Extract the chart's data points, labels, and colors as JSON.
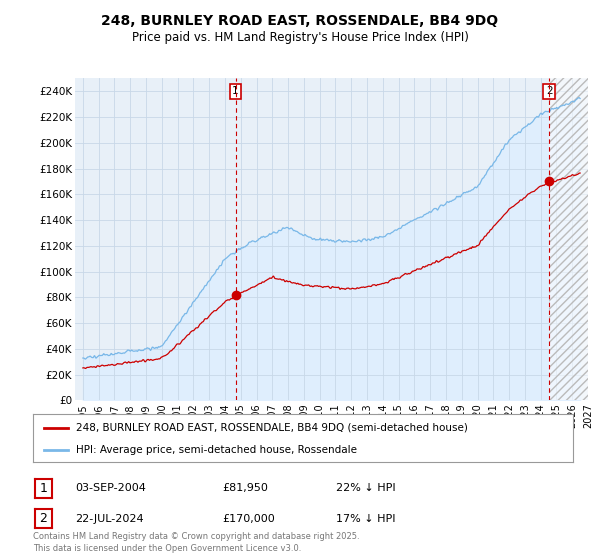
{
  "title": "248, BURNLEY ROAD EAST, ROSSENDALE, BB4 9DQ",
  "subtitle": "Price paid vs. HM Land Registry's House Price Index (HPI)",
  "ylim": [
    0,
    250000
  ],
  "yticks": [
    0,
    20000,
    40000,
    60000,
    80000,
    100000,
    120000,
    140000,
    160000,
    180000,
    200000,
    220000,
    240000
  ],
  "ytick_labels": [
    "£0",
    "£20K",
    "£40K",
    "£60K",
    "£80K",
    "£100K",
    "£120K",
    "£140K",
    "£160K",
    "£180K",
    "£200K",
    "£220K",
    "£240K"
  ],
  "hpi_color": "#7ab8e8",
  "hpi_fill_color": "#ddeeff",
  "price_color": "#cc0000",
  "marker1_year": 2004.67,
  "marker1_price": 81950,
  "marker2_year": 2024.55,
  "marker2_price": 170000,
  "legend_label_price": "248, BURNLEY ROAD EAST, ROSSENDALE, BB4 9DQ (semi-detached house)",
  "legend_label_hpi": "HPI: Average price, semi-detached house, Rossendale",
  "annotation1_date": "03-SEP-2004",
  "annotation1_price": "£81,950",
  "annotation1_hpi": "22% ↓ HPI",
  "annotation2_date": "22-JUL-2024",
  "annotation2_price": "£170,000",
  "annotation2_hpi": "17% ↓ HPI",
  "footer": "Contains HM Land Registry data © Crown copyright and database right 2025.\nThis data is licensed under the Open Government Licence v3.0.",
  "background_color": "#ffffff",
  "grid_color": "#c8d8e8",
  "hatch_color": "#c0c0c0"
}
